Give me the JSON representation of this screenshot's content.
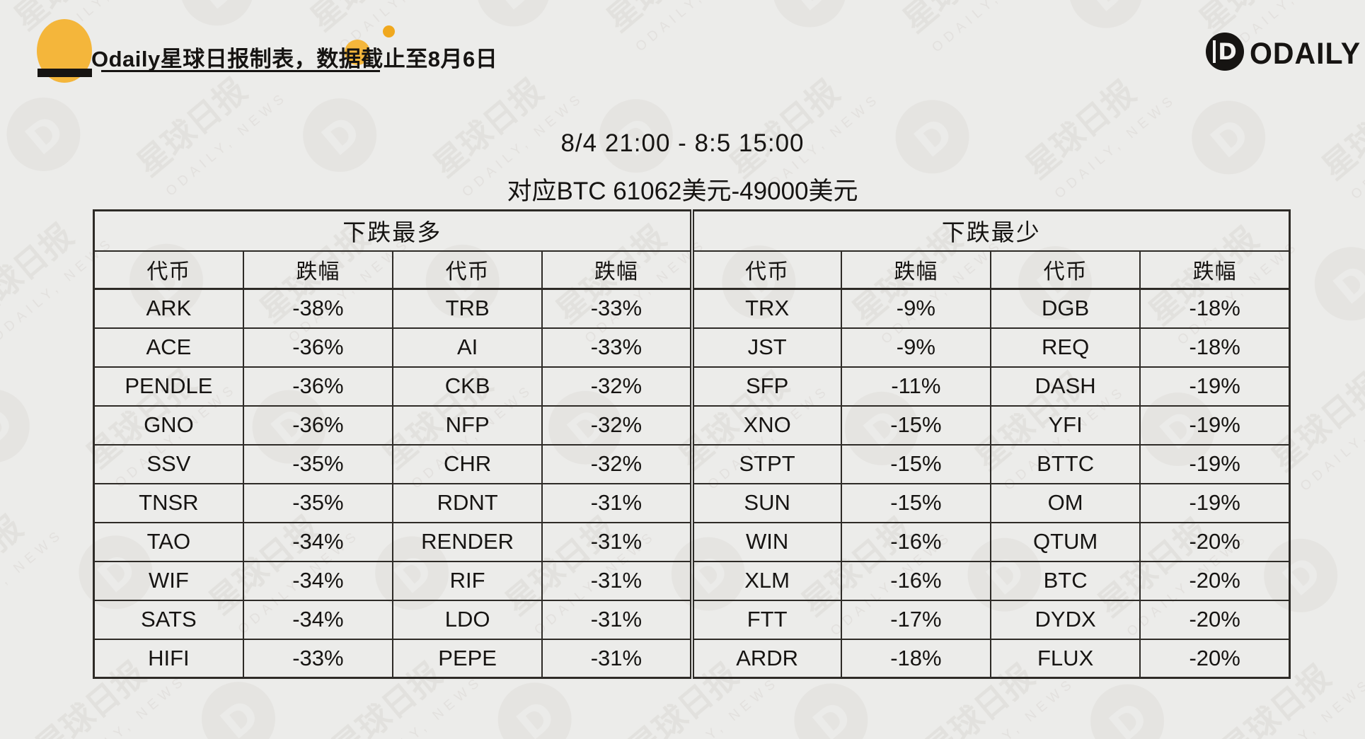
{
  "page": {
    "byline": "Odaily星球日报制表，数据截止至8月6日",
    "brand_word": "ODAILY",
    "brand_glyph": "D",
    "title_line1": "8/4 21:00 - 8:5 15:00",
    "title_line2": "对应BTC 61062美元-49000美元"
  },
  "colors": {
    "background": "#ECECEA",
    "ink": "#161412",
    "table_line": "#2E2B27",
    "accent_yellow": "#F4B63B",
    "dot_orange": "#F0A81E",
    "watermark_gray": "#DBD8D4"
  },
  "watermark": {
    "cn_text": "星球日报",
    "en_text": "ODAILY, NEWS"
  },
  "chart_data": {
    "type": "table",
    "title": "8/4 21:00 - 8:5 15:00",
    "subtitle": "对应BTC 61062美元-49000美元",
    "sections": [
      {
        "title": "下跌最多",
        "columns": [
          "代币",
          "跌幅",
          "代币",
          "跌幅"
        ],
        "rows": [
          [
            "ARK",
            "-38%",
            "TRB",
            "-33%"
          ],
          [
            "ACE",
            "-36%",
            "AI",
            "-33%"
          ],
          [
            "PENDLE",
            "-36%",
            "CKB",
            "-32%"
          ],
          [
            "GNO",
            "-36%",
            "NFP",
            "-32%"
          ],
          [
            "SSV",
            "-35%",
            "CHR",
            "-32%"
          ],
          [
            "TNSR",
            "-35%",
            "RDNT",
            "-31%"
          ],
          [
            "TAO",
            "-34%",
            "RENDER",
            "-31%"
          ],
          [
            "WIF",
            "-34%",
            "RIF",
            "-31%"
          ],
          [
            "SATS",
            "-34%",
            "LDO",
            "-31%"
          ],
          [
            "HIFI",
            "-33%",
            "PEPE",
            "-31%"
          ]
        ]
      },
      {
        "title": "下跌最少",
        "columns": [
          "代币",
          "跌幅",
          "代币",
          "跌幅"
        ],
        "rows": [
          [
            "TRX",
            "-9%",
            "DGB",
            "-18%"
          ],
          [
            "JST",
            "-9%",
            "REQ",
            "-18%"
          ],
          [
            "SFP",
            "-11%",
            "DASH",
            "-19%"
          ],
          [
            "XNO",
            "-15%",
            "YFI",
            "-19%"
          ],
          [
            "STPT",
            "-15%",
            "BTTC",
            "-19%"
          ],
          [
            "SUN",
            "-15%",
            "OM",
            "-19%"
          ],
          [
            "WIN",
            "-16%",
            "QTUM",
            "-20%"
          ],
          [
            "XLM",
            "-16%",
            "BTC",
            "-20%"
          ],
          [
            "FTT",
            "-17%",
            "DYDX",
            "-20%"
          ],
          [
            "ARDR",
            "-18%",
            "FLUX",
            "-20%"
          ]
        ]
      }
    ]
  }
}
